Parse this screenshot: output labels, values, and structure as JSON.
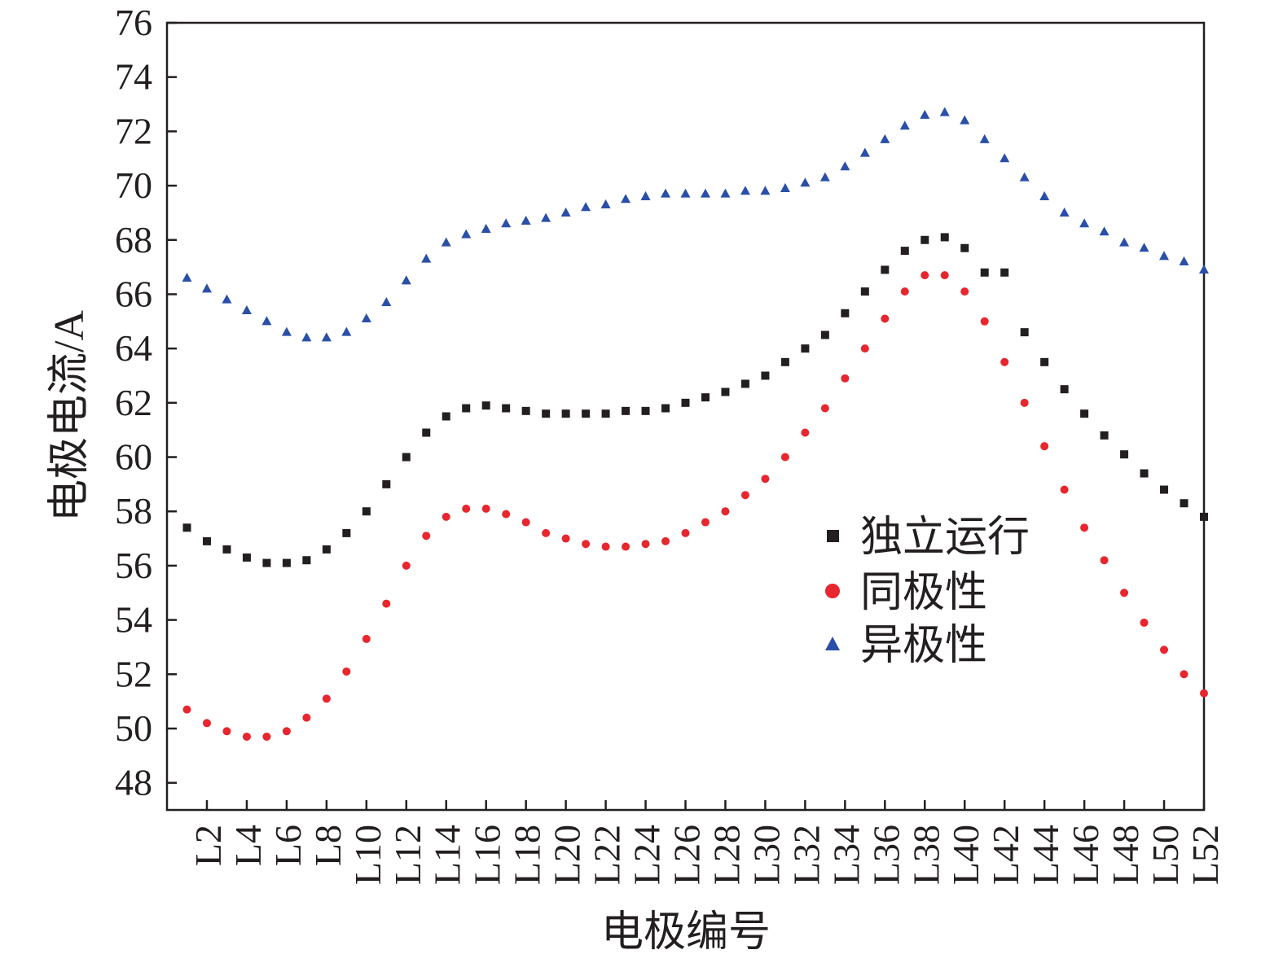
{
  "chart_data": {
    "type": "scatter",
    "xlabel": "电极编号",
    "ylabel": "电极电流/A",
    "ylim": [
      47,
      76
    ],
    "yticks": [
      48,
      50,
      52,
      54,
      56,
      58,
      60,
      62,
      64,
      66,
      68,
      70,
      72,
      74,
      76
    ],
    "x_tick_labels": [
      "L2",
      "L4",
      "L6",
      "L8",
      "L10",
      "L12",
      "L14",
      "L16",
      "L18",
      "L20",
      "L22",
      "L24",
      "L26",
      "L28",
      "L30",
      "L32",
      "L34",
      "L36",
      "L38",
      "L40",
      "L42",
      "L44",
      "L46",
      "L48",
      "L50",
      "L52"
    ],
    "x_categories": [
      "L1",
      "L2",
      "L3",
      "L4",
      "L5",
      "L6",
      "L7",
      "L8",
      "L9",
      "L10",
      "L11",
      "L12",
      "L13",
      "L14",
      "L15",
      "L16",
      "L17",
      "L18",
      "L19",
      "L20",
      "L21",
      "L22",
      "L23",
      "L24",
      "L25",
      "L26",
      "L27",
      "L28",
      "L29",
      "L30",
      "L31",
      "L32",
      "L33",
      "L34",
      "L35",
      "L36",
      "L37",
      "L38",
      "L39",
      "L40",
      "L41",
      "L42",
      "L43",
      "L44",
      "L45",
      "L46",
      "L47",
      "L48",
      "L49",
      "L50",
      "L51",
      "L52"
    ],
    "grid": false,
    "legend_position": "center-right",
    "series": [
      {
        "name": "独立运行",
        "marker": "square",
        "color": "#231f20",
        "values": [
          57.4,
          56.9,
          56.6,
          56.3,
          56.1,
          56.1,
          56.2,
          56.6,
          57.2,
          58.0,
          59.0,
          60.0,
          60.9,
          61.5,
          61.8,
          61.9,
          61.8,
          61.7,
          61.6,
          61.6,
          61.6,
          61.6,
          61.7,
          61.7,
          61.8,
          62.0,
          62.2,
          62.4,
          62.7,
          63.0,
          63.5,
          64.0,
          64.5,
          65.3,
          66.1,
          66.9,
          67.6,
          68.0,
          68.1,
          67.7,
          66.8,
          66.8,
          64.6,
          63.5,
          62.5,
          61.6,
          60.8,
          60.1,
          59.4,
          58.8,
          58.3,
          57.8
        ]
      },
      {
        "name": "同极性",
        "marker": "circle",
        "color": "#e8262d",
        "values": [
          50.7,
          50.2,
          49.9,
          49.7,
          49.7,
          49.9,
          50.4,
          51.1,
          52.1,
          53.3,
          54.6,
          56.0,
          57.1,
          57.8,
          58.1,
          58.1,
          57.9,
          57.6,
          57.2,
          57.0,
          56.8,
          56.7,
          56.7,
          56.8,
          56.9,
          57.2,
          57.6,
          58.0,
          58.6,
          59.2,
          60.0,
          60.9,
          61.8,
          62.9,
          64.0,
          65.1,
          66.1,
          66.7,
          66.7,
          66.1,
          65.0,
          63.5,
          62.0,
          60.4,
          58.8,
          57.4,
          56.2,
          55.0,
          53.9,
          52.9,
          52.0,
          51.3
        ]
      },
      {
        "name": "异极性",
        "marker": "triangle",
        "color": "#2a4fa8",
        "values": [
          66.6,
          66.2,
          65.8,
          65.4,
          65.0,
          64.6,
          64.4,
          64.4,
          64.6,
          65.1,
          65.7,
          66.5,
          67.3,
          67.9,
          68.2,
          68.4,
          68.6,
          68.7,
          68.8,
          69.0,
          69.2,
          69.3,
          69.5,
          69.6,
          69.7,
          69.7,
          69.7,
          69.7,
          69.8,
          69.8,
          69.9,
          70.1,
          70.3,
          70.7,
          71.2,
          71.7,
          72.2,
          72.6,
          72.7,
          72.4,
          71.7,
          71.0,
          70.3,
          69.6,
          69.0,
          68.6,
          68.3,
          67.9,
          67.7,
          67.4,
          67.2,
          66.9
        ]
      }
    ]
  }
}
